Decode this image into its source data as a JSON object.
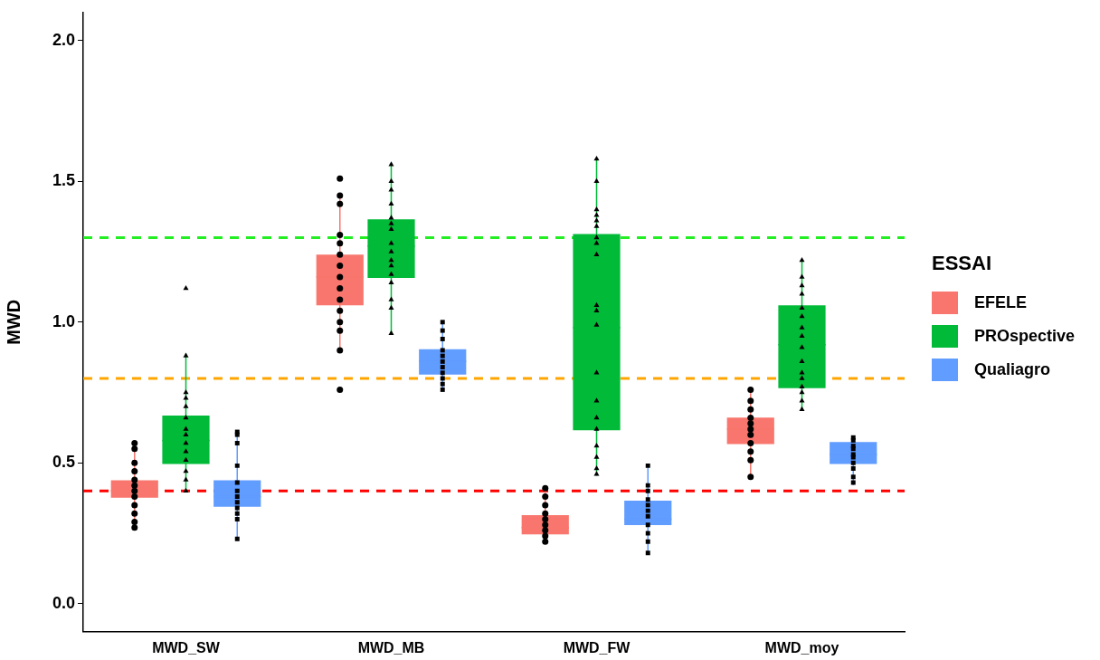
{
  "chart_data": {
    "type": "box",
    "ylabel": "MWD",
    "legend_title": "ESSAI",
    "legend": "right",
    "grid": false,
    "categories": [
      "MWD_SW",
      "MWD_MB",
      "MWD_FW",
      "MWD_moy"
    ],
    "ylim": [
      -0.1,
      2.1
    ],
    "yticks": [
      {
        "value": 0,
        "label": "0.0"
      },
      {
        "value": 0.5,
        "label": "0.5"
      },
      {
        "value": 1,
        "label": "1.0"
      },
      {
        "value": 1.5,
        "label": "1.5"
      },
      {
        "value": 2,
        "label": "2.0"
      }
    ],
    "series": [
      {
        "name": "EFELE",
        "color": "#f8766d",
        "boxes": [
          {
            "low": 0.263,
            "q1": 0.376,
            "median": 0.4,
            "q3": 0.438,
            "high": 0.577
          },
          {
            "low": 0.898,
            "q1": 1.06,
            "median": 1.16,
            "q3": 1.24,
            "high": 1.445
          },
          {
            "low": 0.214,
            "q1": 0.246,
            "median": 0.27,
            "q3": 0.314,
            "high": 0.415
          },
          {
            "low": 0.447,
            "q1": 0.567,
            "median": 0.62,
            "q3": 0.661,
            "high": 0.762
          }
        ]
      },
      {
        "name": "PROspective",
        "color": "#00ba38",
        "boxes": [
          {
            "low": 0.399,
            "q1": 0.496,
            "median": 0.58,
            "q3": 0.668,
            "high": 0.888
          },
          {
            "low": 0.963,
            "q1": 1.157,
            "median": 1.27,
            "q3": 1.365,
            "high": 1.566
          },
          {
            "low": 0.454,
            "q1": 0.616,
            "median": 0.98,
            "q3": 1.313,
            "high": 1.582
          },
          {
            "low": 0.69,
            "q1": 0.765,
            "median": 0.92,
            "q3": 1.06,
            "high": 1.222
          }
        ]
      },
      {
        "name": "Qualiagro",
        "color": "#619cff",
        "boxes": [
          {
            "low": 0.23,
            "q1": 0.344,
            "median": 0.38,
            "q3": 0.438,
            "high": 0.61
          },
          {
            "low": 0.762,
            "q1": 0.814,
            "median": 0.86,
            "q3": 0.904,
            "high": 1.005
          },
          {
            "low": 0.18,
            "q1": 0.279,
            "median": 0.3,
            "q3": 0.366,
            "high": 0.49
          },
          {
            "low": 0.421,
            "q1": 0.496,
            "median": 0.53,
            "q3": 0.574,
            "high": 0.593
          }
        ]
      },
      {
        "type": "scatter",
        "color": "#000000",
        "x": [
          "MWD_SW",
          "MWD_SW",
          "MWD_SW",
          "MWD_SW",
          "MWD_SW",
          "MWD_SW",
          "MWD_SW",
          "MWD_SW",
          "MWD_SW",
          "MWD_SW",
          "MWD_SW",
          "MWD_SW",
          "MWD_MB",
          "MWD_MB",
          "MWD_MB",
          "MWD_MB",
          "MWD_MB",
          "MWD_MB",
          "MWD_MB",
          "MWD_MB",
          "MWD_MB",
          "MWD_MB",
          "MWD_MB",
          "MWD_MB",
          "MWD_MB",
          "MWD_MB",
          "MWD_MB",
          "MWD_FW",
          "MWD_FW",
          "MWD_FW",
          "MWD_FW",
          "MWD_FW",
          "MWD_FW",
          "MWD_FW",
          "MWD_FW",
          "MWD_FW",
          "MWD_moy",
          "MWD_moy",
          "MWD_moy",
          "MWD_moy",
          "MWD_moy",
          "MWD_moy",
          "MWD_moy",
          "MWD_moy",
          "MWD_moy",
          "MWD_moy",
          "MWD_moy"
        ],
        "values": [
          0.57,
          0.55,
          0.5,
          0.47,
          0.44,
          0.42,
          0.4,
          0.38,
          0.35,
          0.32,
          0.29,
          0.27,
          1.51,
          1.45,
          1.42,
          1.31,
          1.28,
          1.24,
          1.2,
          1.16,
          1.12,
          1.08,
          1.04,
          1.0,
          0.97,
          0.9,
          0.76,
          0.41,
          0.38,
          0.35,
          0.32,
          0.3,
          0.28,
          0.26,
          0.24,
          0.22,
          0.76,
          0.72,
          0.69,
          0.66,
          0.64,
          0.62,
          0.6,
          0.57,
          0.54,
          0.51,
          0.45
        ]
      },
      {
        "type": "scatter",
        "color": "#000000",
        "marker": "triangle",
        "x": [
          "MWD_SW",
          "MWD_SW",
          "MWD_SW",
          "MWD_SW",
          "MWD_SW",
          "MWD_SW",
          "MWD_SW",
          "MWD_SW",
          "MWD_SW",
          "MWD_SW",
          "MWD_SW",
          "MWD_SW",
          "MWD_SW",
          "MWD_SW",
          "MWD_MB",
          "MWD_MB",
          "MWD_MB",
          "MWD_MB",
          "MWD_MB",
          "MWD_MB",
          "MWD_MB",
          "MWD_MB",
          "MWD_MB",
          "MWD_MB",
          "MWD_MB",
          "MWD_MB",
          "MWD_MB",
          "MWD_MB",
          "MWD_MB",
          "MWD_MB",
          "MWD_FW",
          "MWD_FW",
          "MWD_FW",
          "MWD_FW",
          "MWD_FW",
          "MWD_FW",
          "MWD_FW",
          "MWD_FW",
          "MWD_FW",
          "MWD_FW",
          "MWD_FW",
          "MWD_FW",
          "MWD_FW",
          "MWD_FW",
          "MWD_FW",
          "MWD_FW",
          "MWD_FW",
          "MWD_FW",
          "MWD_FW",
          "MWD_FW",
          "MWD_moy",
          "MWD_moy",
          "MWD_moy",
          "MWD_moy",
          "MWD_moy",
          "MWD_moy",
          "MWD_moy",
          "MWD_moy",
          "MWD_moy",
          "MWD_moy",
          "MWD_moy",
          "MWD_moy",
          "MWD_moy",
          "MWD_moy",
          "MWD_moy",
          "MWD_moy"
        ],
        "values": [
          1.12,
          0.88,
          0.75,
          0.73,
          0.7,
          0.66,
          0.62,
          0.6,
          0.57,
          0.54,
          0.51,
          0.47,
          0.44,
          0.4,
          1.56,
          1.5,
          1.47,
          1.42,
          1.37,
          1.35,
          1.33,
          1.28,
          1.25,
          1.22,
          1.2,
          1.17,
          1.14,
          1.08,
          1.05,
          0.96,
          1.58,
          1.5,
          1.4,
          1.38,
          1.36,
          1.34,
          1.3,
          1.28,
          1.24,
          1.06,
          1.04,
          0.99,
          0.82,
          0.72,
          0.66,
          0.62,
          0.56,
          0.52,
          0.48,
          0.46,
          1.22,
          1.16,
          1.13,
          1.1,
          1.05,
          1.02,
          0.98,
          0.95,
          0.91,
          0.86,
          0.82,
          0.8,
          0.77,
          0.75,
          0.72,
          0.69
        ]
      },
      {
        "type": "scatter",
        "color": "#000000",
        "marker": "square",
        "x": [
          "MWD_SW",
          "MWD_SW",
          "MWD_SW",
          "MWD_SW",
          "MWD_SW",
          "MWD_SW",
          "MWD_SW",
          "MWD_SW",
          "MWD_SW",
          "MWD_SW",
          "MWD_SW",
          "MWD_SW",
          "MWD_MB",
          "MWD_MB",
          "MWD_MB",
          "MWD_MB",
          "MWD_MB",
          "MWD_MB",
          "MWD_MB",
          "MWD_MB",
          "MWD_MB",
          "MWD_MB",
          "MWD_MB",
          "MWD_FW",
          "MWD_FW",
          "MWD_FW",
          "MWD_FW",
          "MWD_FW",
          "MWD_FW",
          "MWD_FW",
          "MWD_FW",
          "MWD_FW",
          "MWD_FW",
          "MWD_FW",
          "MWD_moy",
          "MWD_moy",
          "MWD_moy",
          "MWD_moy",
          "MWD_moy",
          "MWD_moy",
          "MWD_moy",
          "MWD_moy",
          "MWD_moy",
          "MWD_moy"
        ],
        "values": [
          0.61,
          0.6,
          0.57,
          0.49,
          0.43,
          0.4,
          0.38,
          0.36,
          0.34,
          0.32,
          0.3,
          0.23,
          1.0,
          0.97,
          0.94,
          0.9,
          0.88,
          0.86,
          0.84,
          0.82,
          0.8,
          0.78,
          0.76,
          0.49,
          0.42,
          0.4,
          0.37,
          0.35,
          0.33,
          0.31,
          0.28,
          0.25,
          0.22,
          0.18,
          0.59,
          0.58,
          0.56,
          0.55,
          0.53,
          0.52,
          0.5,
          0.48,
          0.45,
          0.43
        ]
      }
    ],
    "ref_lines": [
      {
        "axis": "y",
        "value": 1.3,
        "color": "#22ee22",
        "line_style": "dashed"
      },
      {
        "axis": "y",
        "value": 0.8,
        "color": "#ffa500",
        "line_style": "dashed"
      },
      {
        "axis": "y",
        "value": 0.4,
        "color": "#ff0000",
        "line_style": "dashed"
      }
    ]
  }
}
